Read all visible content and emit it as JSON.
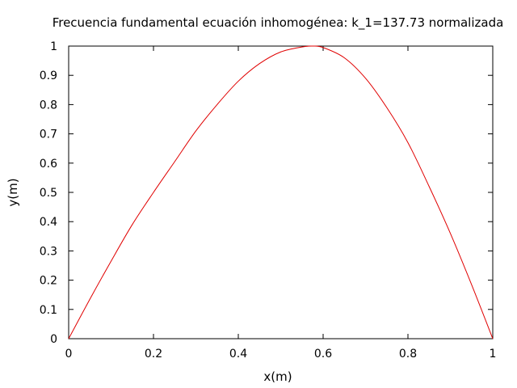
{
  "chart_data": {
    "type": "line",
    "title": "Frecuencia fundamental ecuación inhomogénea: k_1=137.73 normalizada",
    "xlabel": "x(m)",
    "ylabel": "y(m)",
    "xlim": [
      0,
      1
    ],
    "ylim": [
      0,
      1
    ],
    "x_ticks": [
      "0",
      "0.2",
      "0.4",
      "0.6",
      "0.8",
      "1"
    ],
    "y_ticks": [
      "0",
      "0.1",
      "0.2",
      "0.3",
      "0.4",
      "0.5",
      "0.6",
      "0.7",
      "0.8",
      "0.9",
      "1"
    ],
    "grid": false,
    "legend": "none",
    "series": [
      {
        "color": "#e00000",
        "x": [
          0,
          0.05,
          0.1,
          0.15,
          0.2,
          0.25,
          0.3,
          0.35,
          0.4,
          0.45,
          0.5,
          0.55,
          0.575,
          0.6,
          0.65,
          0.7,
          0.75,
          0.8,
          0.85,
          0.9,
          0.95,
          1
        ],
        "y": [
          0,
          0.135,
          0.265,
          0.39,
          0.5,
          0.605,
          0.71,
          0.8,
          0.88,
          0.94,
          0.98,
          0.997,
          1.0,
          0.995,
          0.96,
          0.89,
          0.79,
          0.67,
          0.52,
          0.36,
          0.185,
          0
        ]
      }
    ]
  }
}
